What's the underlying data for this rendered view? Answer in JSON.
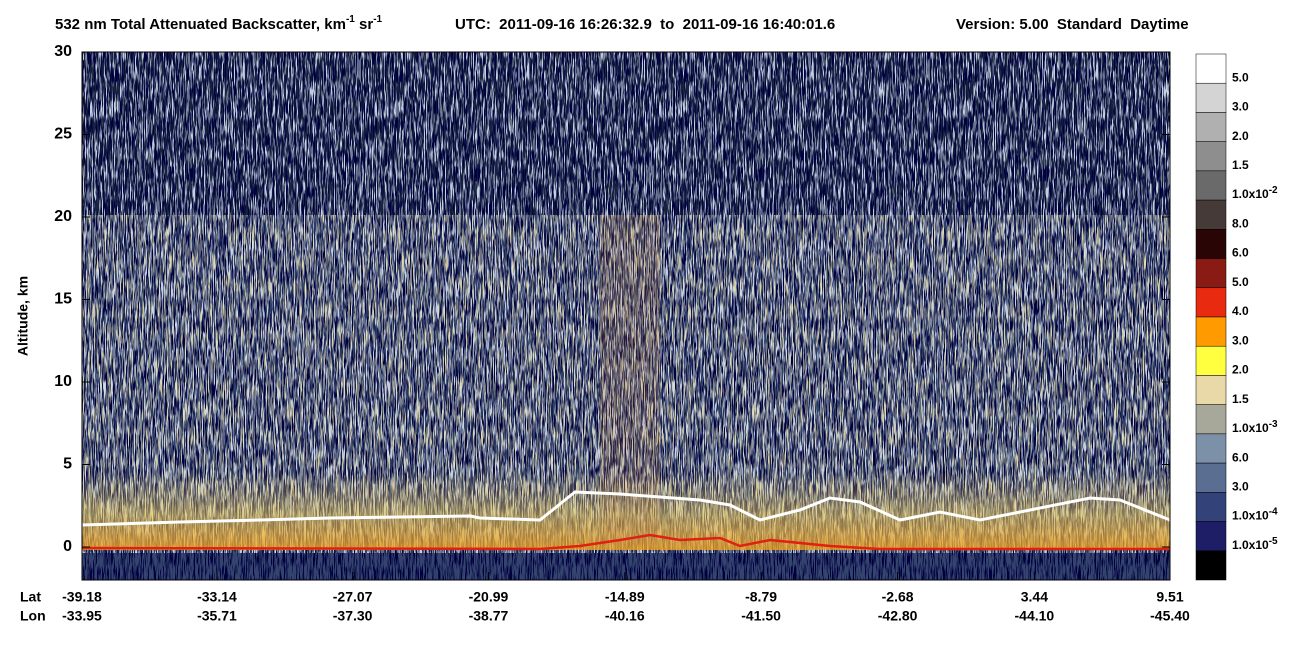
{
  "chart_data": {
    "type": "curtain",
    "title_parts": [
      "532 nm Total Attenuated Backscatter, km",
      "-1",
      " sr",
      "-1"
    ],
    "utc": "UTC:  2011-09-16 16:26:32.9  to  2011-09-16 16:40:01.6",
    "version": "Version: 5.00  Standard  Daytime",
    "ylabel": "Altitude, km",
    "ylim": [
      -2,
      30
    ],
    "yticks": [
      0,
      5,
      10,
      15,
      20,
      25,
      30
    ],
    "x_row_labels": [
      "Lat",
      "Lon"
    ],
    "xlim": [
      -39.18,
      9.51
    ],
    "lat_ticks": [
      -39.18,
      -33.14,
      -27.07,
      -20.99,
      -14.89,
      -8.79,
      -2.68,
      3.44,
      9.51
    ],
    "lon_ticks": [
      -33.95,
      -35.71,
      {
        "value": -37.3,
        "label": "-37.30"
      },
      -38.77,
      -40.16,
      {
        "value": -41.5,
        "label": "-41.50"
      },
      {
        "value": -42.8,
        "label": "-42.80"
      },
      {
        "value": -44.1,
        "label": "-44.10"
      },
      {
        "value": -45.4,
        "label": "-45.40"
      }
    ],
    "colorbar": {
      "colors": [
        "#ffffff",
        "#d4d4d4",
        "#b0b0b0",
        "#8e8e8e",
        "#6a6a6a",
        "#463a38",
        "#2a0505",
        "#8a1a14",
        "#e82a10",
        "#ff9a00",
        "#ffff40",
        "#ead9a8",
        "#a8a89a",
        "#7c90a8",
        "#5a6e92",
        "#34427a",
        "#1e1e66",
        "#000000"
      ],
      "labels": [
        "5.0",
        "3.0",
        "2.0",
        "1.5",
        {
          "base": "1.0x10",
          "exp": "-2"
        },
        "8.0",
        "6.0",
        "5.0",
        "4.0",
        "3.0",
        "2.0",
        "1.5",
        {
          "base": "1.0x10",
          "exp": "-3"
        },
        "6.0",
        "3.0",
        {
          "base": "1.0x10",
          "exp": "-4"
        },
        {
          "base": "1.0x10",
          "exp": "-5"
        }
      ]
    }
  }
}
